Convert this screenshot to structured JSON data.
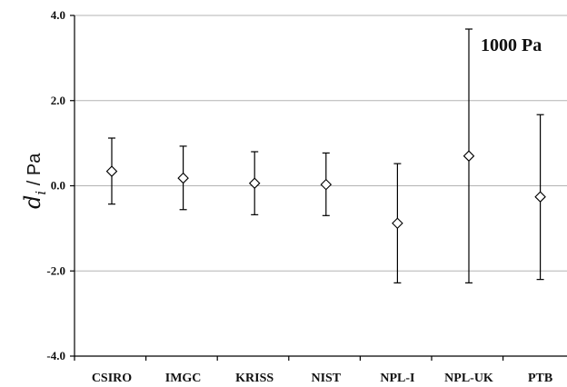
{
  "chart_data": {
    "type": "scatter",
    "title": "",
    "ylabel": {
      "symbol": "d",
      "subscript": "i",
      "unit": " / Pa"
    },
    "xlabel": "",
    "ylim": [
      -4.0,
      4.0
    ],
    "yticks": [
      -4.0,
      -2.0,
      0.0,
      2.0,
      4.0
    ],
    "ytick_labels": [
      "-4.0",
      "-2.0",
      "0.0",
      "2.0",
      "4.0"
    ],
    "grid": "horizontal",
    "categories": [
      "CSIRO",
      "IMGC",
      "KRISS",
      "NIST",
      "NPL-I",
      "NPL-UK",
      "PTB"
    ],
    "values": [
      0.34,
      0.18,
      0.06,
      0.03,
      -0.88,
      0.7,
      -0.26
    ],
    "err_low": [
      -0.43,
      -0.56,
      -0.68,
      -0.7,
      -2.28,
      -2.28,
      -2.2
    ],
    "err_high": [
      1.12,
      0.93,
      0.8,
      0.77,
      0.52,
      3.68,
      1.67
    ],
    "marker": "open-diamond",
    "annotation": "1000 Pa"
  }
}
